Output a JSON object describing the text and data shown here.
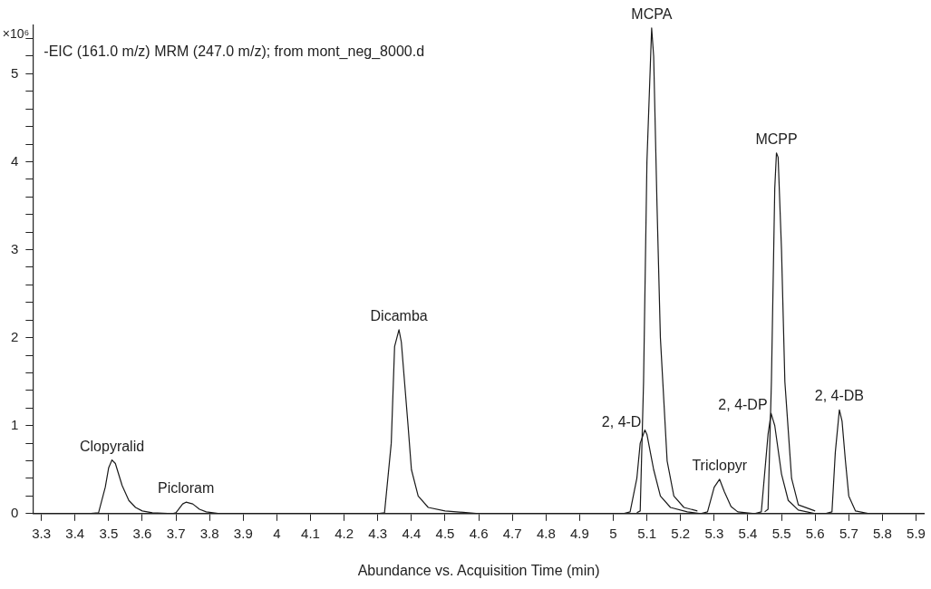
{
  "chart_data": {
    "type": "line",
    "xlabel": "Abundance vs. Acquisition Time (min)",
    "ylabel": "×10⁶",
    "xlim": [
      3.275,
      5.925
    ],
    "ylim": [
      0,
      5.55
    ],
    "xticks": [
      3.3,
      3.4,
      3.5,
      3.6,
      3.7,
      3.8,
      3.9,
      4,
      4.1,
      4.2,
      4.3,
      4.4,
      4.5,
      4.6,
      4.7,
      4.8,
      4.9,
      5,
      5.1,
      5.2,
      5.3,
      5.4,
      5.5,
      5.6,
      5.7,
      5.8,
      5.9
    ],
    "yticks": [
      0,
      {
        "value": 0.2,
        "label": null
      },
      {
        "value": 0.4,
        "label": null
      },
      {
        "value": 0.6,
        "label": null
      },
      {
        "value": 0.8,
        "label": null
      },
      1,
      {
        "value": 1.2,
        "label": null
      },
      {
        "value": 1.4,
        "label": null
      },
      {
        "value": 1.6,
        "label": null
      },
      {
        "value": 1.8,
        "label": null
      },
      2,
      {
        "value": 2.2,
        "label": null
      },
      {
        "value": 2.4,
        "label": null
      },
      {
        "value": 2.6,
        "label": null
      },
      {
        "value": 2.8,
        "label": null
      },
      3,
      {
        "value": 3.2,
        "label": null
      },
      {
        "value": 3.4,
        "label": null
      },
      {
        "value": 3.6,
        "label": null
      },
      {
        "value": 3.8,
        "label": null
      },
      4,
      {
        "value": 4.2,
        "label": null
      },
      {
        "value": 4.4,
        "label": null
      },
      {
        "value": 4.6,
        "label": null
      },
      {
        "value": 4.8,
        "label": null
      },
      5,
      {
        "value": 5.2,
        "label": null
      },
      {
        "value": 5.4,
        "label": null
      }
    ],
    "grid": false,
    "legend": false,
    "marker": "none",
    "line_style": "solid",
    "series": [
      {
        "color": "#1a1a1a",
        "x": [
          3.275,
          3.44,
          3.47,
          3.49,
          3.5,
          3.51,
          3.52,
          3.54,
          3.56,
          3.58,
          3.6,
          3.63,
          3.69,
          3.7,
          3.72,
          3.73,
          3.75,
          3.77,
          3.79,
          3.83,
          4.3,
          4.32,
          4.34,
          4.35,
          4.363,
          4.37,
          4.39,
          4.4,
          4.42,
          4.45,
          4.5,
          4.6,
          5.03,
          5.05,
          5.07,
          5.08,
          5.094,
          5.1,
          5.12,
          5.14,
          5.17,
          5.22,
          5.26,
          5.28,
          5.3,
          5.316,
          5.33,
          5.35,
          5.37,
          5.42,
          5.44,
          5.46,
          5.469,
          5.48,
          5.5,
          5.52,
          5.55,
          5.6,
          5.63,
          5.65,
          5.66,
          5.672,
          5.68,
          5.69,
          5.7,
          5.72,
          5.76,
          5.925
        ],
        "values": [
          0,
          0,
          0.01,
          0.3,
          0.52,
          0.61,
          0.57,
          0.32,
          0.15,
          0.07,
          0.03,
          0.01,
          0,
          0.01,
          0.11,
          0.13,
          0.11,
          0.05,
          0.02,
          0,
          0,
          0.01,
          0.8,
          1.9,
          2.09,
          1.95,
          1,
          0.5,
          0.2,
          0.07,
          0.03,
          0,
          0,
          0.02,
          0.4,
          0.8,
          0.95,
          0.9,
          0.5,
          0.2,
          0.07,
          0.02,
          0,
          0.02,
          0.3,
          0.39,
          0.25,
          0.08,
          0.02,
          0,
          0.02,
          0.9,
          1.14,
          1,
          0.45,
          0.15,
          0.04,
          0,
          0,
          0.02,
          0.7,
          1.18,
          1.05,
          0.6,
          0.2,
          0.03,
          0,
          0
        ]
      },
      {
        "color": "#1a1a1a",
        "x": [
          5.07,
          5.08,
          5.09,
          5.1,
          5.114,
          5.12,
          5.13,
          5.14,
          5.16,
          5.18,
          5.21,
          5.25
        ],
        "values": [
          0.01,
          0.03,
          1.5,
          4,
          5.52,
          5.2,
          3.5,
          2,
          0.6,
          0.2,
          0.07,
          0.03
        ]
      },
      {
        "color": "#1a1a1a",
        "x": [
          5.45,
          5.46,
          5.47,
          5.48,
          5.485,
          5.49,
          5.5,
          5.51,
          5.53,
          5.55,
          5.6
        ],
        "values": [
          0.02,
          0.05,
          1.5,
          3.7,
          4.1,
          4.05,
          3,
          1.5,
          0.4,
          0.1,
          0.03
        ]
      }
    ],
    "annotations": [
      "-EIC (161.0 m/z) MRM (247.0 m/z); from mont_neg_8000.d",
      {
        "text": "Clopyralid",
        "x": 3.51,
        "y": 0.61
      },
      {
        "text": "Picloram",
        "x": 3.73,
        "y": 0.13
      },
      {
        "text": "Dicamba",
        "x": 4.363,
        "y": 2.09
      },
      {
        "text": "2, 4-D",
        "x": 5.094,
        "y": 0.95
      },
      {
        "text": "MCPA",
        "x": 5.114,
        "y": 5.52
      },
      {
        "text": "Triclopyr",
        "x": 5.316,
        "y": 0.39
      },
      {
        "text": "2, 4-DP",
        "x": 5.469,
        "y": 1.14
      },
      {
        "text": "MCPP",
        "x": 5.485,
        "y": 4.1
      },
      {
        "text": "2, 4-DB",
        "x": 5.672,
        "y": 1.18
      }
    ]
  }
}
